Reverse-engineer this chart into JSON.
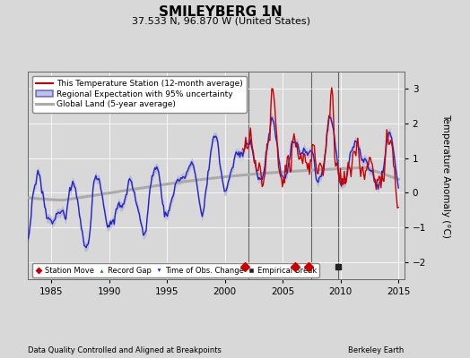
{
  "title": "SMILEYBERG 1N",
  "subtitle": "37.533 N, 96.870 W (United States)",
  "ylabel": "Temperature Anomaly (°C)",
  "xlabel_left": "Data Quality Controlled and Aligned at Breakpoints",
  "xlabel_right": "Berkeley Earth",
  "xlim": [
    1983.0,
    2015.5
  ],
  "ylim": [
    -2.5,
    3.5
  ],
  "yticks": [
    -2,
    -1,
    0,
    1,
    2,
    3
  ],
  "xticks": [
    1985,
    1990,
    1995,
    2000,
    2005,
    2010,
    2015
  ],
  "bg_color": "#d8d8d8",
  "plot_bg_color": "#d8d8d8",
  "station_move_years": [
    2001.7,
    2006.1,
    2007.2
  ],
  "record_gap_years": [],
  "time_obs_change_years": [],
  "empirical_break_years": [
    2009.8
  ],
  "vline_years": [
    2002.0,
    2007.5
  ],
  "vline_color": "#888888",
  "legend_labels": [
    "This Temperature Station (12-month average)",
    "Regional Expectation with 95% uncertainty",
    "Global Land (5-year average)"
  ],
  "line_colors": [
    "#cc0000",
    "#2222cc",
    "#aaaaaa"
  ],
  "uncertainty_color": "#9999cc",
  "red_start_year": 2001.5,
  "random_seed": 17
}
